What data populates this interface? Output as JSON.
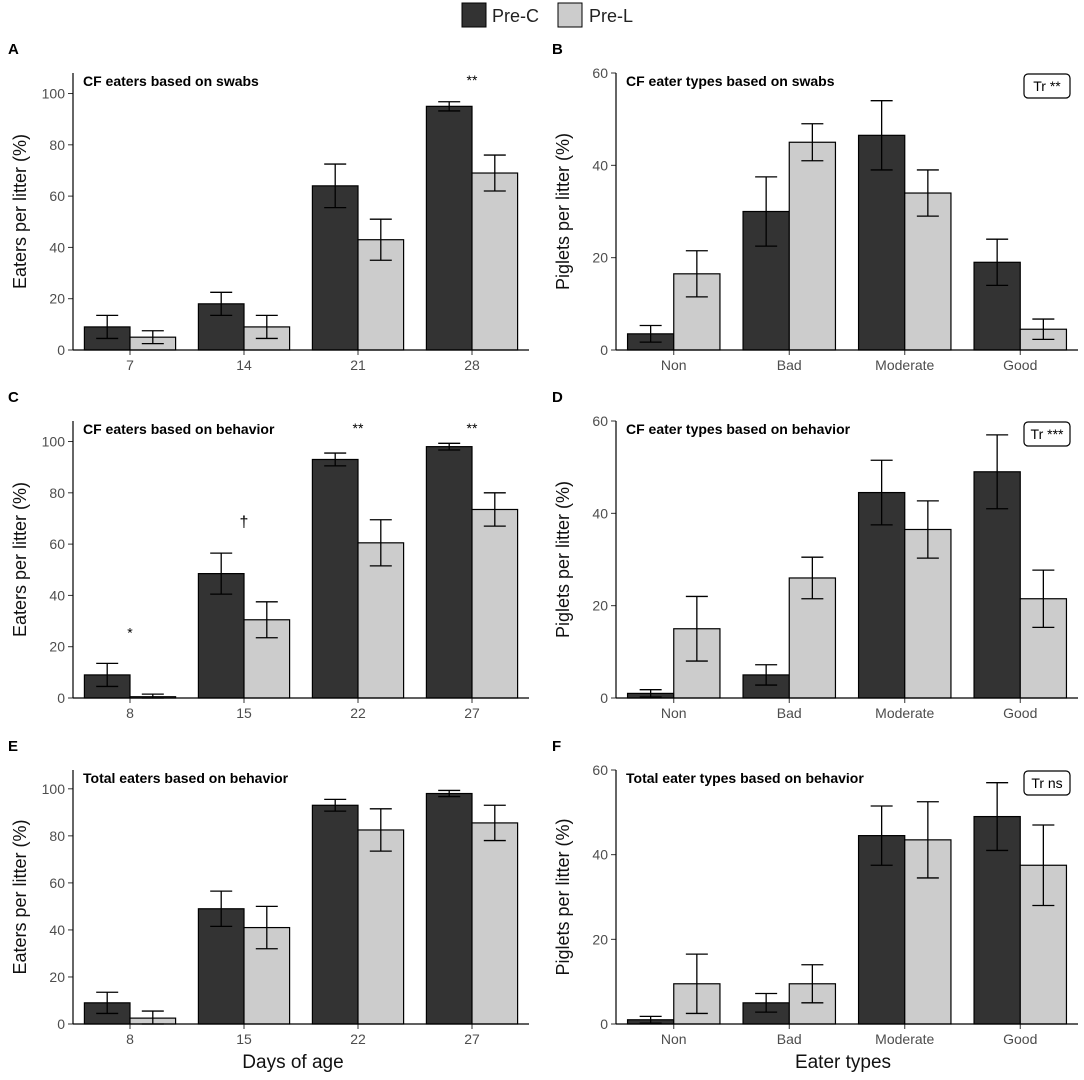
{
  "legend": {
    "items": [
      {
        "label": "Pre-C",
        "color": "#333333"
      },
      {
        "label": "Pre-L",
        "color": "#cccccc"
      }
    ]
  },
  "x_titles": {
    "left": "Days of age",
    "right": "Eater types"
  },
  "chart_data": [
    {
      "panel": "A",
      "type": "bar",
      "title": "CF eaters based on swabs",
      "ylabel": "Eaters per litter (%)",
      "ylim": [
        0,
        108
      ],
      "yticks": [
        0,
        20,
        40,
        60,
        80,
        100
      ],
      "categories": [
        "7",
        "14",
        "21",
        "28"
      ],
      "series": [
        {
          "name": "Pre-C",
          "values": [
            9,
            18,
            64,
            95
          ],
          "err": [
            4.5,
            4.5,
            8.5,
            1.8
          ]
        },
        {
          "name": "Pre-L",
          "values": [
            5,
            9,
            43,
            69
          ],
          "err": [
            2.5,
            4.5,
            8,
            7
          ]
        }
      ],
      "significance": [
        "",
        "",
        "",
        "**"
      ],
      "test_badge": ""
    },
    {
      "panel": "B",
      "type": "bar",
      "title": "CF eater types based on swabs",
      "ylabel": "Piglets per litter (%)",
      "ylim": [
        0,
        60
      ],
      "yticks": [
        0,
        20,
        40,
        60
      ],
      "categories": [
        "Non",
        "Bad",
        "Moderate",
        "Good"
      ],
      "series": [
        {
          "name": "Pre-C",
          "values": [
            3.5,
            30,
            46.5,
            19
          ],
          "err": [
            1.8,
            7.5,
            7.5,
            5
          ]
        },
        {
          "name": "Pre-L",
          "values": [
            16.5,
            45,
            34,
            4.5
          ],
          "err": [
            5,
            4,
            5,
            2.2
          ]
        }
      ],
      "significance": [
        "",
        "",
        "",
        ""
      ],
      "test_badge": "Tr **"
    },
    {
      "panel": "C",
      "type": "bar",
      "title": "CF eaters based on behavior",
      "ylabel": "Eaters per litter (%)",
      "ylim": [
        0,
        108
      ],
      "yticks": [
        0,
        20,
        40,
        60,
        80,
        100
      ],
      "categories": [
        "8",
        "15",
        "22",
        "27"
      ],
      "series": [
        {
          "name": "Pre-C",
          "values": [
            9,
            48.5,
            93,
            98
          ],
          "err": [
            4.5,
            8,
            2.5,
            1.3
          ]
        },
        {
          "name": "Pre-L",
          "values": [
            0.5,
            30.5,
            60.5,
            73.5
          ],
          "err": [
            1,
            7,
            9,
            6.5
          ]
        }
      ],
      "significance": [
        "*",
        "†",
        "**",
        "**"
      ],
      "test_badge": ""
    },
    {
      "panel": "D",
      "type": "bar",
      "title": "CF eater types based on behavior",
      "ylabel": "Piglets per litter (%)",
      "ylim": [
        0,
        60
      ],
      "yticks": [
        0,
        20,
        40,
        60
      ],
      "categories": [
        "Non",
        "Bad",
        "Moderate",
        "Good"
      ],
      "series": [
        {
          "name": "Pre-C",
          "values": [
            1,
            5,
            44.5,
            49
          ],
          "err": [
            0.8,
            2.2,
            7,
            8
          ]
        },
        {
          "name": "Pre-L",
          "values": [
            15,
            26,
            36.5,
            21.5
          ],
          "err": [
            7,
            4.5,
            6.2,
            6.2
          ]
        }
      ],
      "significance": [
        "",
        "",
        "",
        ""
      ],
      "test_badge": "Tr ***"
    },
    {
      "panel": "E",
      "type": "bar",
      "title": "Total eaters based on behavior",
      "ylabel": "Eaters per litter (%)",
      "ylim": [
        0,
        108
      ],
      "yticks": [
        0,
        20,
        40,
        60,
        80,
        100
      ],
      "categories": [
        "8",
        "15",
        "22",
        "27"
      ],
      "series": [
        {
          "name": "Pre-C",
          "values": [
            9,
            49,
            93,
            98
          ],
          "err": [
            4.5,
            7.5,
            2.5,
            1.3
          ]
        },
        {
          "name": "Pre-L",
          "values": [
            2.5,
            41,
            82.5,
            85.5
          ],
          "err": [
            3,
            9,
            9,
            7.5
          ]
        }
      ],
      "significance": [
        "",
        "",
        "",
        ""
      ],
      "test_badge": ""
    },
    {
      "panel": "F",
      "type": "bar",
      "title": "Total eater types based on behavior",
      "ylabel": "Piglets per litter (%)",
      "ylim": [
        0,
        60
      ],
      "yticks": [
        0,
        20,
        40,
        60
      ],
      "categories": [
        "Non",
        "Bad",
        "Moderate",
        "Good"
      ],
      "series": [
        {
          "name": "Pre-C",
          "values": [
            1,
            5,
            44.5,
            49
          ],
          "err": [
            0.8,
            2.2,
            7,
            8
          ]
        },
        {
          "name": "Pre-L",
          "values": [
            9.5,
            9.5,
            43.5,
            37.5
          ],
          "err": [
            7,
            4.5,
            9,
            9.5
          ]
        }
      ],
      "significance": [
        "",
        "",
        "",
        ""
      ],
      "test_badge": "Tr ns"
    }
  ]
}
